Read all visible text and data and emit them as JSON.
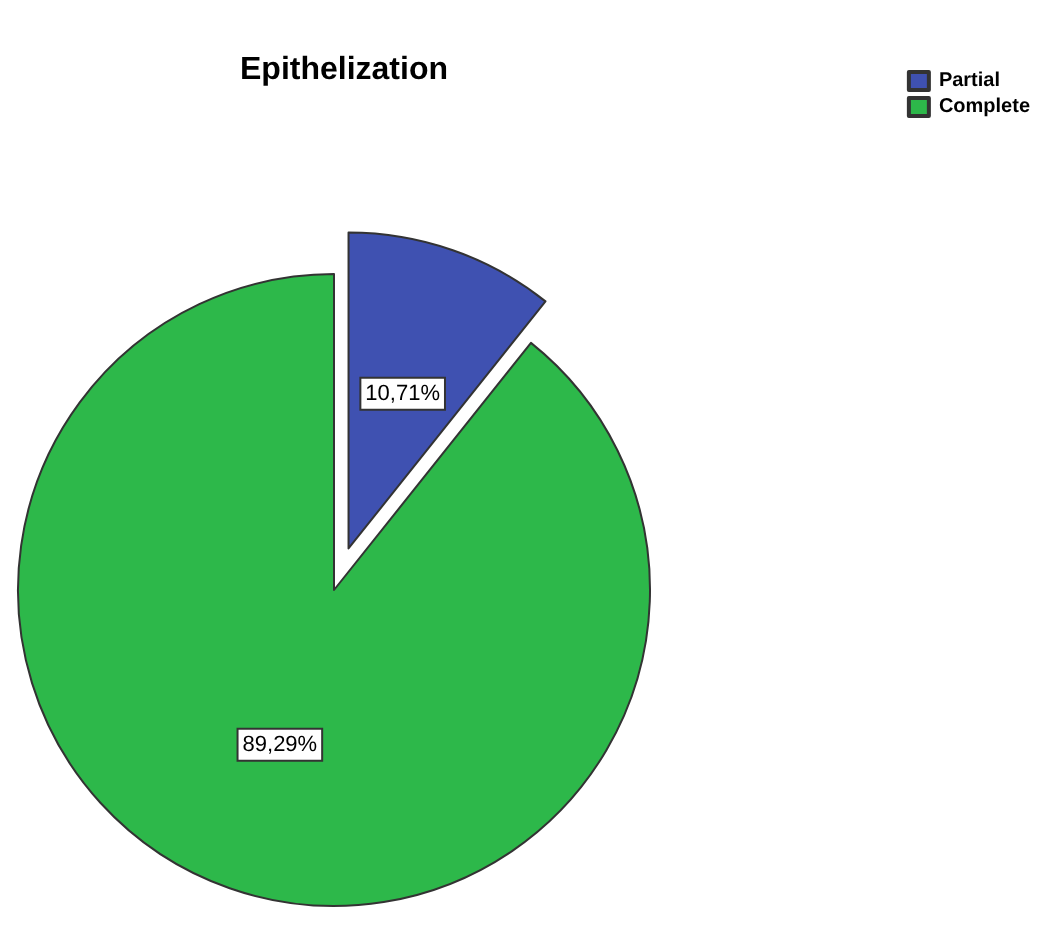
{
  "chart_data": {
    "type": "pie",
    "title": "Epithelization",
    "categories": [
      "Partial",
      "Complete"
    ],
    "values": [
      10.71,
      89.29
    ],
    "colors": [
      "#3f51b1",
      "#2db84a"
    ],
    "value_labels": [
      "10,71%",
      "89,29%"
    ],
    "legend": "top right"
  }
}
